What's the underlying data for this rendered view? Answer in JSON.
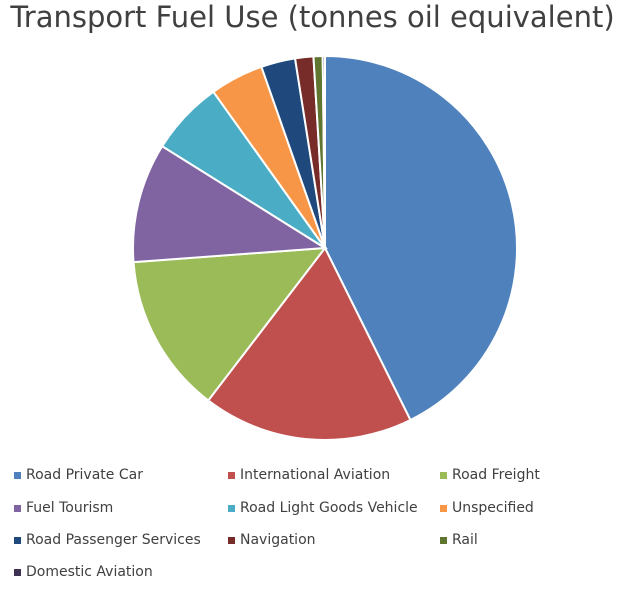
{
  "chart_data": {
    "type": "pie",
    "title": "Transport Fuel Use (tonnes oil equivalent)",
    "legend_position": "bottom",
    "categories": [
      "Road Private Car",
      "International Aviation",
      "Road Freight",
      "Fuel Tourism",
      "Road Light Goods Vehicle",
      "Unspecified",
      "Road Passenger Services",
      "Navigation",
      "Rail",
      "Domestic Aviation"
    ],
    "values": [
      44.5,
      18.5,
      14.0,
      10.5,
      6.5,
      4.7,
      3.0,
      1.6,
      0.8,
      0.2
    ],
    "colors": [
      "#4F81BD",
      "#C0504D",
      "#9BBB59",
      "#8064A2",
      "#4BACC6",
      "#F79646",
      "#1F497D",
      "#772C2A",
      "#5F7530",
      "#3F3151"
    ]
  }
}
